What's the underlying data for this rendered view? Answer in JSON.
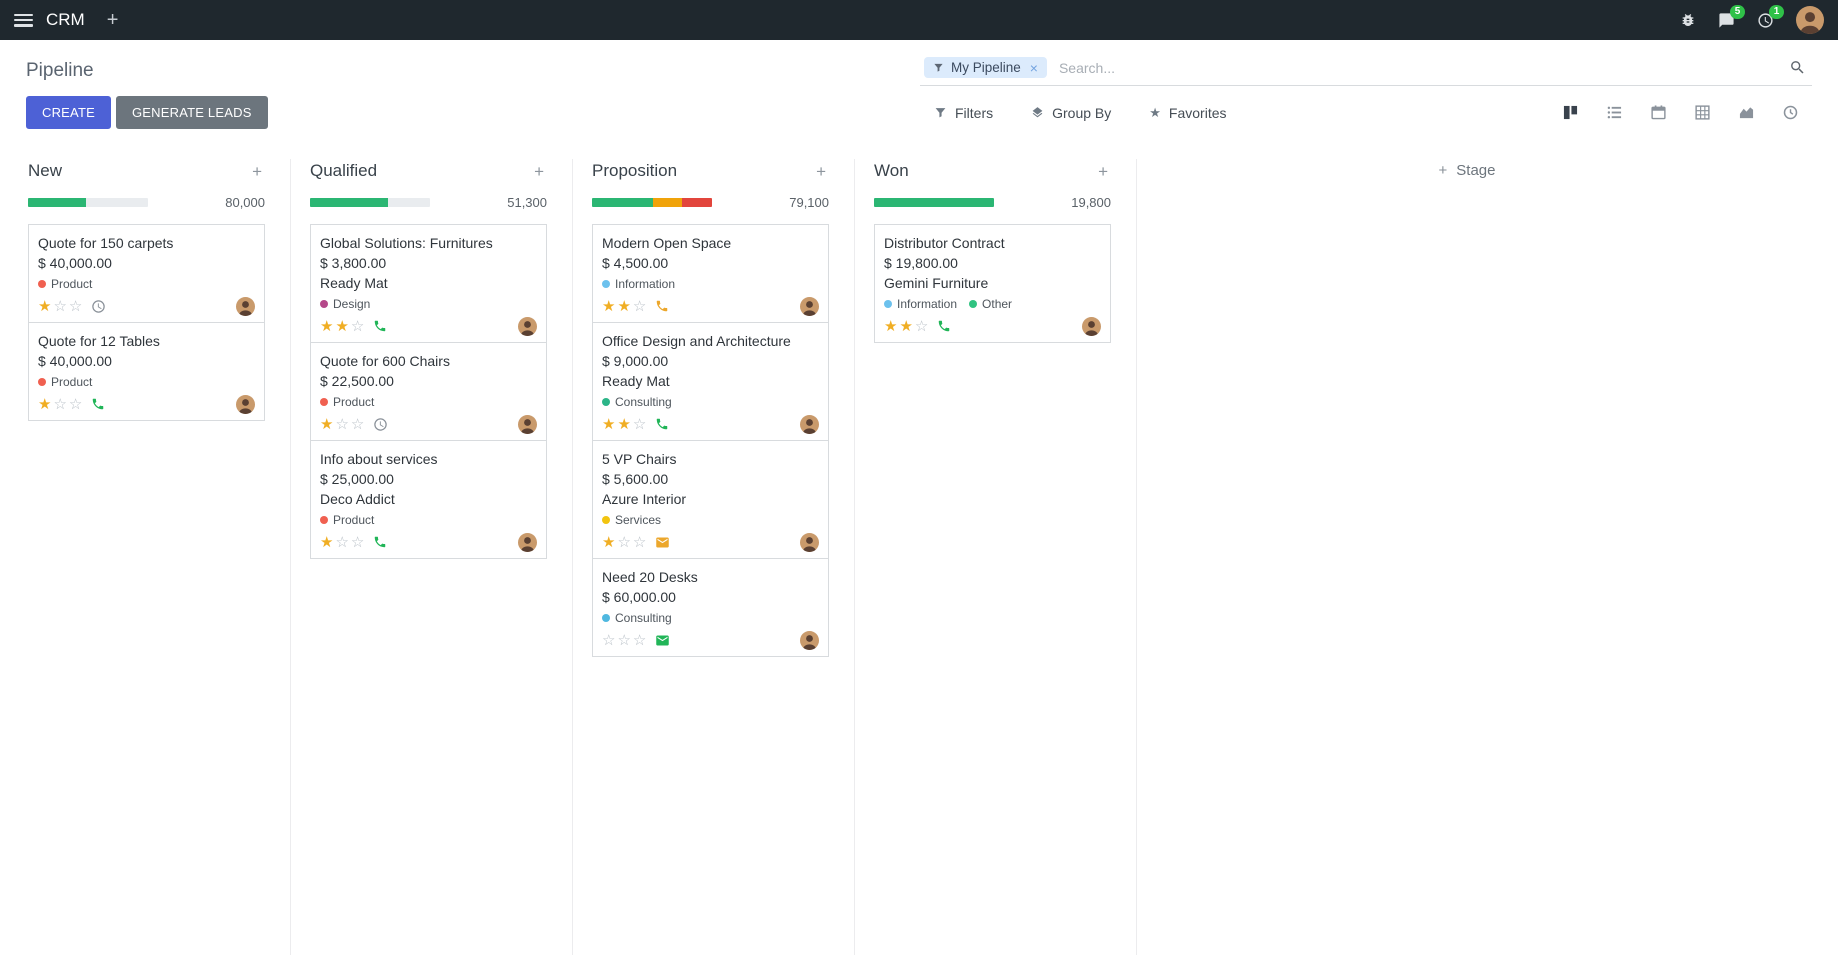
{
  "navbar": {
    "app_name": "CRM",
    "messages_badge": "5",
    "activities_badge": "1"
  },
  "control_panel": {
    "title": "Pipeline",
    "create_label": "CREATE",
    "generate_leads_label": "GENERATE LEADS",
    "search": {
      "facet_label": "My Pipeline",
      "placeholder": "Search..."
    },
    "filters_label": "Filters",
    "group_by_label": "Group By",
    "favorites_label": "Favorites",
    "active_view": "kanban"
  },
  "board": {
    "add_column_label": "Stage",
    "columns": [
      {
        "title": "New",
        "total": "80,000",
        "progress": [
          {
            "name": "success",
            "color": "#2bb673",
            "pct": 48
          }
        ],
        "cards": [
          {
            "title": "Quote for 150 carpets",
            "amount": "$ 40,000.00",
            "partner": "",
            "tags": [
              {
                "label": "Product",
                "color": "#f06050"
              }
            ],
            "stars_filled": 1,
            "activity_icon": "clock-icon",
            "activity_color": "#8a9199"
          },
          {
            "title": "Quote for 12 Tables",
            "amount": "$ 40,000.00",
            "partner": "",
            "tags": [
              {
                "label": "Product",
                "color": "#f06050"
              }
            ],
            "stars_filled": 1,
            "activity_icon": "phone-icon",
            "activity_color": "#21b558"
          }
        ]
      },
      {
        "title": "Qualified",
        "total": "51,300",
        "progress": [
          {
            "name": "success",
            "color": "#2bb673",
            "pct": 65
          }
        ],
        "cards": [
          {
            "title": "Global Solutions: Furnitures",
            "amount": "$ 3,800.00",
            "partner": "Ready Mat",
            "tags": [
              {
                "label": "Design",
                "color": "#b5488a"
              }
            ],
            "stars_filled": 2,
            "activity_icon": "phone-icon",
            "activity_color": "#21b558"
          },
          {
            "title": "Quote for 600 Chairs",
            "amount": "$ 22,500.00",
            "partner": "",
            "tags": [
              {
                "label": "Product",
                "color": "#f06050"
              }
            ],
            "stars_filled": 1,
            "activity_icon": "clock-icon",
            "activity_color": "#8a9199"
          },
          {
            "title": "Info about services",
            "amount": "$ 25,000.00",
            "partner": "Deco Addict",
            "tags": [
              {
                "label": "Product",
                "color": "#f06050"
              }
            ],
            "stars_filled": 1,
            "activity_icon": "phone-icon",
            "activity_color": "#21b558"
          }
        ]
      },
      {
        "title": "Proposition",
        "total": "79,100",
        "progress": [
          {
            "name": "success",
            "color": "#2bb673",
            "pct": 51
          },
          {
            "name": "warning",
            "color": "#f0a30a",
            "pct": 24
          },
          {
            "name": "danger",
            "color": "#e2453c",
            "pct": 25
          }
        ],
        "cards": [
          {
            "title": "Modern Open Space",
            "amount": "$ 4,500.00",
            "partner": "",
            "tags": [
              {
                "label": "Information",
                "color": "#6cc1ed"
              }
            ],
            "stars_filled": 2,
            "activity_icon": "phone-icon",
            "activity_color": "#eca72c"
          },
          {
            "title": "Office Design and Architecture",
            "amount": "$ 9,000.00",
            "partner": "Ready Mat",
            "tags": [
              {
                "label": "Consulting",
                "color": "#2cb588"
              }
            ],
            "stars_filled": 2,
            "activity_icon": "phone-icon",
            "activity_color": "#21b558"
          },
          {
            "title": "5 VP Chairs",
            "amount": "$ 5,600.00",
            "partner": "Azure Interior",
            "tags": [
              {
                "label": "Services",
                "color": "#f2c40f"
              }
            ],
            "stars_filled": 1,
            "activity_icon": "envelope-icon",
            "activity_color": "#eca72c"
          },
          {
            "title": "Need 20 Desks",
            "amount": "$ 60,000.00",
            "partner": "",
            "tags": [
              {
                "label": "Consulting",
                "color": "#4fb8e0"
              }
            ],
            "stars_filled": 0,
            "activity_icon": "envelope-icon",
            "activity_color": "#21b558"
          }
        ]
      },
      {
        "title": "Won",
        "total": "19,800",
        "progress": [
          {
            "name": "success",
            "color": "#2bb673",
            "pct": 100
          }
        ],
        "cards": [
          {
            "title": "Distributor Contract",
            "amount": "$ 19,800.00",
            "partner": "Gemini Furniture",
            "tags": [
              {
                "label": "Information",
                "color": "#6cc1ed"
              },
              {
                "label": "Other",
                "color": "#30c381"
              }
            ],
            "stars_filled": 2,
            "activity_icon": "phone-icon",
            "activity_color": "#21b558"
          }
        ]
      }
    ]
  }
}
